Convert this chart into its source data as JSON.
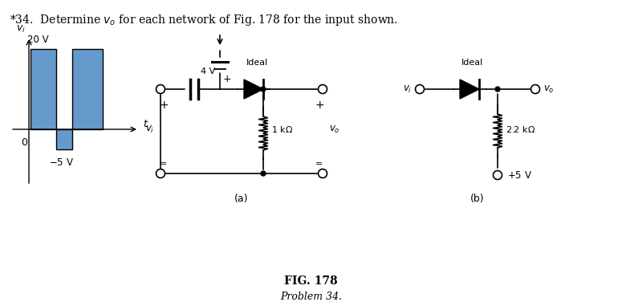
{
  "title": "*34.  Determine $v_o$ for each network of Fig. 178 for the input shown.",
  "fig_label": "FIG. 178",
  "fig_sublabel": "Problem 34.",
  "bg_color": "#ffffff",
  "text_color": "#000000",
  "blue_fill": "#6699cc",
  "label_a": "(a)",
  "label_b": "(b)"
}
